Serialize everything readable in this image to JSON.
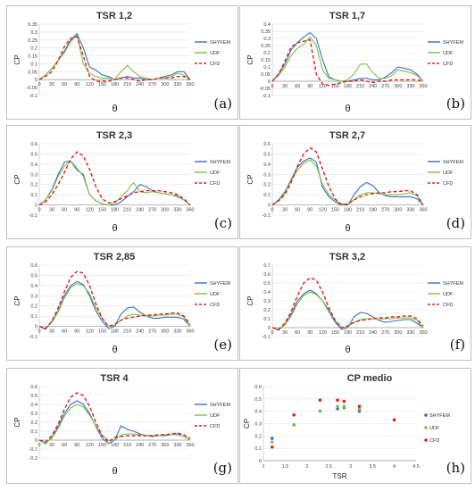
{
  "colors": {
    "SHYFEM": "#3a6fc4",
    "UDF": "#7cc242",
    "CFD": "#e02020"
  },
  "chart_data": [
    {
      "type": "line",
      "title": "TSR 1,2",
      "panel_label": "(a)",
      "xlabel": "θ",
      "ylabel": "CP",
      "ylim": [
        -0.1,
        0.35
      ],
      "xlim": [
        0,
        360
      ],
      "yticks": [
        "-0.1",
        "-0.05",
        "0",
        "0.05",
        "0.1",
        "0.15",
        "0.2",
        "0.25",
        "0.3",
        "0.35"
      ],
      "xticks": [
        "0",
        "30",
        "60",
        "90",
        "120",
        "150",
        "180",
        "210",
        "240",
        "270",
        "300",
        "330",
        "360"
      ],
      "x": [
        0,
        15,
        30,
        45,
        60,
        75,
        90,
        105,
        120,
        135,
        150,
        165,
        180,
        195,
        210,
        225,
        240,
        255,
        270,
        285,
        300,
        315,
        330,
        345,
        360
      ],
      "series": [
        {
          "name": "SHYFEM",
          "values": [
            0,
            0.03,
            0.07,
            0.12,
            0.18,
            0.25,
            0.29,
            0.2,
            0.08,
            0.06,
            0.03,
            0.02,
            0,
            0.01,
            0.02,
            0.01,
            0.01,
            0,
            0,
            0.01,
            0.02,
            0.03,
            0.05,
            0.05,
            0
          ]
        },
        {
          "name": "UDF",
          "values": [
            0,
            0.03,
            0.07,
            0.12,
            0.17,
            0.24,
            0.28,
            0.1,
            0.04,
            0.02,
            0.01,
            0.01,
            0,
            0.05,
            0.09,
            0.05,
            0.02,
            0.01,
            0,
            0.01,
            0.01,
            0.02,
            0.04,
            0.03,
            0
          ]
        },
        {
          "name": "CFD",
          "values": [
            0,
            0.02,
            0.05,
            0.12,
            0.21,
            0.26,
            0.27,
            0.15,
            0.02,
            -0.01,
            -0.01,
            -0.01,
            0,
            0.01,
            0.01,
            0,
            -0.01,
            0,
            0,
            0.01,
            0.01,
            0.01,
            0.02,
            0.02,
            0
          ]
        }
      ]
    },
    {
      "type": "line",
      "title": "TSR 1,7",
      "panel_label": "(b)",
      "xlabel": "θ",
      "ylabel": "CP",
      "ylim": [
        -0.1,
        0.4
      ],
      "xlim": [
        0,
        360
      ],
      "yticks": [
        "-0.1",
        "-0.05",
        "0",
        "0.05",
        "0.1",
        "0.15",
        "0.2",
        "0.25",
        "0.3",
        "0.35",
        "0.4"
      ],
      "xticks": [
        "0",
        "30",
        "60",
        "90",
        "120",
        "150",
        "180",
        "210",
        "240",
        "270",
        "300",
        "330",
        "360"
      ],
      "x": [
        0,
        15,
        30,
        45,
        60,
        75,
        90,
        105,
        120,
        135,
        150,
        165,
        180,
        195,
        210,
        225,
        240,
        255,
        270,
        285,
        300,
        315,
        330,
        345,
        360
      ],
      "series": [
        {
          "name": "SHYFEM",
          "values": [
            0,
            0.05,
            0.12,
            0.22,
            0.27,
            0.31,
            0.34,
            0.3,
            0.15,
            0.03,
            0.01,
            0,
            0,
            0.01,
            0.02,
            0.02,
            0.01,
            0.01,
            0.03,
            0.06,
            0.1,
            0.09,
            0.08,
            0.05,
            0
          ]
        },
        {
          "name": "UDF",
          "values": [
            0,
            0.04,
            0.1,
            0.18,
            0.23,
            0.26,
            0.31,
            0.25,
            0.08,
            0.02,
            0.01,
            0,
            0.01,
            0.05,
            0.12,
            0.12,
            0.06,
            0.02,
            0.02,
            0.04,
            0.08,
            0.07,
            0.06,
            0.04,
            0
          ]
        },
        {
          "name": "CFD",
          "values": [
            0,
            0.05,
            0.14,
            0.24,
            0.27,
            0.28,
            0.29,
            0.05,
            -0.02,
            -0.03,
            -0.02,
            -0.01,
            0,
            0,
            0.01,
            0,
            -0.01,
            0,
            0,
            0.01,
            0.01,
            0.01,
            0.01,
            0.01,
            0
          ]
        }
      ]
    },
    {
      "type": "line",
      "title": "TSR 2,3",
      "panel_label": "(c)",
      "xlabel": "θ",
      "ylabel": "CP",
      "ylim": [
        -0.1,
        0.6
      ],
      "xlim": [
        0,
        360
      ],
      "yticks": [
        "-0.1",
        "0",
        "0.1",
        "0.2",
        "0.3",
        "0.4",
        "0.5",
        "0.6"
      ],
      "xticks": [
        "0",
        "30",
        "60",
        "90",
        "120",
        "150",
        "180",
        "210",
        "240",
        "270",
        "300",
        "330",
        "360"
      ],
      "x": [
        0,
        15,
        30,
        45,
        60,
        75,
        90,
        105,
        120,
        135,
        150,
        165,
        180,
        195,
        210,
        225,
        240,
        255,
        270,
        285,
        300,
        315,
        330,
        345,
        360
      ],
      "series": [
        {
          "name": "SHYFEM",
          "values": [
            0,
            0.05,
            0.15,
            0.3,
            0.42,
            0.43,
            0.34,
            0.3,
            0.1,
            0.04,
            0.01,
            0,
            0,
            0.03,
            0.08,
            0.13,
            0.2,
            0.18,
            0.14,
            0.12,
            0.11,
            0.1,
            0.08,
            0.05,
            0
          ]
        },
        {
          "name": "UDF",
          "values": [
            0,
            0.05,
            0.14,
            0.28,
            0.38,
            0.43,
            0.36,
            0.28,
            0.1,
            0.04,
            0.01,
            0,
            0.02,
            0.08,
            0.14,
            0.22,
            0.13,
            0.12,
            0.13,
            0.12,
            0.11,
            0.1,
            0.09,
            0.05,
            0
          ]
        },
        {
          "name": "CFD",
          "values": [
            0,
            0.03,
            0.1,
            0.2,
            0.32,
            0.45,
            0.52,
            0.48,
            0.35,
            0.18,
            0.06,
            0.02,
            0.03,
            0.06,
            0.09,
            0.12,
            0.13,
            0.14,
            0.14,
            0.14,
            0.13,
            0.12,
            0.1,
            0.06,
            0
          ]
        }
      ]
    },
    {
      "type": "line",
      "title": "TSR 2,7",
      "panel_label": "(d)",
      "xlabel": "θ",
      "ylabel": "CP",
      "ylim": [
        -0.1,
        0.6
      ],
      "xlim": [
        0,
        360
      ],
      "yticks": [
        "-0.1",
        "0",
        "0.1",
        "0.2",
        "0.3",
        "0.4",
        "0.5",
        "0.6"
      ],
      "xticks": [
        "0",
        "30",
        "60",
        "90",
        "120",
        "150",
        "180",
        "210",
        "240",
        "270",
        "300",
        "330",
        "360"
      ],
      "x": [
        0,
        15,
        30,
        45,
        60,
        75,
        90,
        105,
        120,
        135,
        150,
        165,
        180,
        195,
        210,
        225,
        240,
        255,
        270,
        285,
        300,
        315,
        330,
        345,
        360
      ],
      "series": [
        {
          "name": "SHYFEM",
          "values": [
            0,
            0.05,
            0.13,
            0.25,
            0.37,
            0.43,
            0.46,
            0.42,
            0.17,
            0.08,
            0.03,
            0,
            0,
            0.1,
            0.18,
            0.22,
            0.19,
            0.12,
            0.09,
            0.08,
            0.08,
            0.08,
            0.08,
            0.06,
            0
          ]
        },
        {
          "name": "UDF",
          "values": [
            0,
            0.04,
            0.12,
            0.24,
            0.34,
            0.41,
            0.44,
            0.38,
            0.2,
            0.1,
            0.05,
            0.01,
            0.01,
            0.05,
            0.1,
            0.12,
            0.12,
            0.11,
            0.1,
            0.1,
            0.1,
            0.11,
            0.12,
            0.09,
            0
          ]
        },
        {
          "name": "CFD",
          "values": [
            0,
            0.04,
            0.1,
            0.22,
            0.38,
            0.5,
            0.56,
            0.52,
            0.35,
            0.18,
            0.06,
            0,
            0.01,
            0.05,
            0.08,
            0.1,
            0.11,
            0.12,
            0.12,
            0.13,
            0.13,
            0.14,
            0.14,
            0.1,
            0
          ]
        }
      ]
    },
    {
      "type": "line",
      "title": "TSR 2,85",
      "panel_label": "(e)",
      "xlabel": "θ",
      "ylabel": "CP",
      "ylim": [
        -0.1,
        0.6
      ],
      "xlim": [
        0,
        360
      ],
      "yticks": [
        "-0.1",
        "0",
        "0.1",
        "0.2",
        "0.3",
        "0.4",
        "0.5",
        "0.6"
      ],
      "xticks": [
        "0",
        "30",
        "60",
        "90",
        "120",
        "150",
        "180",
        "210",
        "240",
        "270",
        "300",
        "330",
        "360"
      ],
      "x": [
        0,
        15,
        30,
        45,
        60,
        75,
        90,
        105,
        120,
        135,
        150,
        165,
        180,
        195,
        210,
        225,
        240,
        255,
        270,
        285,
        300,
        315,
        330,
        345,
        360
      ],
      "series": [
        {
          "name": "SHYFEM",
          "values": [
            0,
            -0.03,
            0.05,
            0.15,
            0.3,
            0.4,
            0.44,
            0.41,
            0.3,
            0.15,
            0.05,
            -0.02,
            0,
            0.12,
            0.18,
            0.19,
            0.14,
            0.1,
            0.08,
            0.08,
            0.09,
            0.09,
            0.09,
            0.07,
            0
          ]
        },
        {
          "name": "UDF",
          "values": [
            0,
            -0.02,
            0.04,
            0.14,
            0.28,
            0.38,
            0.42,
            0.4,
            0.32,
            0.18,
            0.08,
            0,
            0.01,
            0.06,
            0.1,
            0.12,
            0.11,
            0.1,
            0.1,
            0.11,
            0.11,
            0.12,
            0.12,
            0.09,
            0
          ]
        },
        {
          "name": "CFD",
          "values": [
            0,
            -0.02,
            0.05,
            0.18,
            0.34,
            0.48,
            0.54,
            0.52,
            0.4,
            0.22,
            0.08,
            0,
            0.02,
            0.06,
            0.08,
            0.09,
            0.1,
            0.11,
            0.11,
            0.12,
            0.12,
            0.13,
            0.13,
            0.1,
            0.02
          ]
        }
      ]
    },
    {
      "type": "line",
      "title": "TSR 3,2",
      "panel_label": "(f)",
      "xlabel": "θ",
      "ylabel": "CP",
      "ylim": [
        -0.1,
        0.7
      ],
      "xlim": [
        0,
        360
      ],
      "yticks": [
        "-0.1",
        "0",
        "0.1",
        "0.2",
        "0.3",
        "0.4",
        "0.5",
        "0.6",
        "0.7"
      ],
      "xticks": [
        "0",
        "30",
        "60",
        "90",
        "120",
        "150",
        "180",
        "210",
        "240",
        "270",
        "300",
        "330",
        "360"
      ],
      "x": [
        0,
        15,
        30,
        45,
        60,
        75,
        90,
        105,
        120,
        135,
        150,
        165,
        180,
        195,
        210,
        225,
        240,
        255,
        270,
        285,
        300,
        315,
        330,
        345,
        360
      ],
      "series": [
        {
          "name": "SHYFEM",
          "values": [
            0,
            -0.03,
            0.04,
            0.15,
            0.3,
            0.38,
            0.42,
            0.38,
            0.3,
            0.18,
            0.06,
            -0.02,
            0,
            0.12,
            0.17,
            0.16,
            0.12,
            0.08,
            0.06,
            0.07,
            0.08,
            0.09,
            0.09,
            0.05,
            0
          ]
        },
        {
          "name": "UDF",
          "values": [
            0,
            -0.02,
            0.03,
            0.13,
            0.27,
            0.36,
            0.4,
            0.37,
            0.3,
            0.2,
            0.08,
            0,
            0.01,
            0.06,
            0.09,
            0.1,
            0.1,
            0.09,
            0.1,
            0.1,
            0.11,
            0.11,
            0.11,
            0.08,
            0
          ]
        },
        {
          "name": "CFD",
          "values": [
            0,
            -0.02,
            0.05,
            0.18,
            0.36,
            0.5,
            0.56,
            0.53,
            0.4,
            0.22,
            0.08,
            0,
            0.02,
            0.06,
            0.08,
            0.09,
            0.1,
            0.11,
            0.11,
            0.12,
            0.12,
            0.13,
            0.13,
            0.1,
            0.02
          ]
        }
      ]
    },
    {
      "type": "line",
      "title": "TSR 4",
      "panel_label": "(g)",
      "xlabel": "θ",
      "ylabel": "CP",
      "ylim": [
        -0.2,
        0.6
      ],
      "xlim": [
        0,
        360
      ],
      "yticks": [
        "-0.2",
        "-0.1",
        "0",
        "0.1",
        "0.2",
        "0.3",
        "0.4",
        "0.5",
        "0.6"
      ],
      "xticks": [
        "0",
        "30",
        "60",
        "90",
        "120",
        "150",
        "180",
        "210",
        "240",
        "270",
        "300",
        "330",
        "360"
      ],
      "x": [
        0,
        15,
        30,
        45,
        60,
        75,
        90,
        105,
        120,
        135,
        150,
        165,
        180,
        195,
        210,
        225,
        240,
        255,
        270,
        285,
        300,
        315,
        330,
        345,
        360
      ],
      "series": [
        {
          "name": "SHYFEM",
          "values": [
            0,
            -0.04,
            0.03,
            0.15,
            0.3,
            0.4,
            0.44,
            0.4,
            0.3,
            0.15,
            0.02,
            -0.04,
            0,
            0.16,
            0.12,
            0.1,
            0.07,
            0.05,
            0.04,
            0.05,
            0.05,
            0.06,
            0.07,
            0.04,
            0
          ]
        },
        {
          "name": "UDF",
          "values": [
            0,
            -0.03,
            0.02,
            0.13,
            0.27,
            0.36,
            0.4,
            0.37,
            0.28,
            0.16,
            0.05,
            0,
            0,
            0.06,
            0.07,
            0.07,
            0.06,
            0.05,
            0.05,
            0.05,
            0.06,
            0.06,
            0.06,
            0.04,
            0
          ]
        },
        {
          "name": "CFD",
          "values": [
            0,
            -0.02,
            0.05,
            0.18,
            0.35,
            0.48,
            0.53,
            0.5,
            0.38,
            0.2,
            0.05,
            -0.02,
            0.03,
            0.04,
            0.05,
            0.05,
            0.05,
            0.05,
            0.05,
            0.06,
            0.06,
            0.07,
            0.08,
            0.06,
            0.02
          ]
        }
      ]
    },
    {
      "type": "scatter",
      "title": "CP medio",
      "panel_label": "(h)",
      "xlabel": "TSR",
      "ylabel": "CP",
      "ylim": [
        0,
        0.6
      ],
      "xlim": [
        1,
        4.5
      ],
      "yticks": [
        "0",
        "0.1",
        "0.2",
        "0.3",
        "0.4",
        "0.5",
        "0.6"
      ],
      "xticks": [
        "1",
        "1.5",
        "2",
        "2.5",
        "3",
        "3.5",
        "4",
        "4.5"
      ],
      "series": [
        {
          "name": "SHYFEM",
          "x": [
            1.2,
            1.7,
            2.3,
            2.7,
            2.85,
            3.2
          ],
          "values": [
            0.18,
            0.29,
            0.4,
            0.42,
            0.43,
            0.4
          ]
        },
        {
          "name": "UDF",
          "x": [
            1.2,
            1.7,
            2.3,
            2.7,
            2.85,
            3.2
          ],
          "values": [
            0.15,
            0.29,
            0.4,
            0.44,
            0.44,
            0.42
          ]
        },
        {
          "name": "CFD",
          "x": [
            1.2,
            1.7,
            2.3,
            2.7,
            2.85,
            3.2,
            4
          ],
          "values": [
            0.11,
            0.37,
            0.49,
            0.49,
            0.48,
            0.44,
            0.33
          ]
        }
      ]
    }
  ]
}
